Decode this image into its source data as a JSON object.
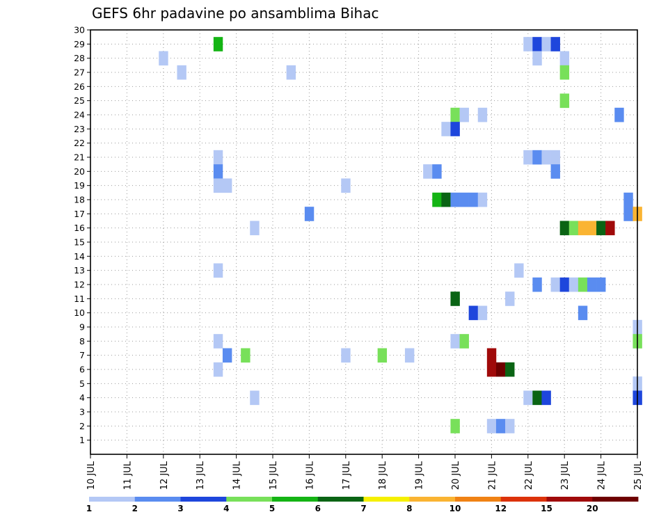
{
  "chart_data": {
    "type": "heatmap",
    "title": "GEFS 6hr padavine po ansamblima Bihac",
    "xlabel": "",
    "ylabel": "",
    "x_ticks": [
      "10 JUL",
      "11 JUL",
      "12 JUL",
      "13 JUL",
      "14 JUL",
      "15 JUL",
      "16 JUL",
      "17 JUL",
      "18 JUL",
      "19 JUL",
      "20 JUL",
      "21 JUL",
      "22 JUL",
      "23 JUL",
      "24 JUL",
      "25 JUL"
    ],
    "xlim": [
      0,
      60
    ],
    "x_units": "6-hour steps from 10 JUL 00Z",
    "ylim": [
      0,
      30
    ],
    "y_ticks": [
      1,
      2,
      3,
      4,
      5,
      6,
      7,
      8,
      9,
      10,
      11,
      12,
      13,
      14,
      15,
      16,
      17,
      18,
      19,
      20,
      21,
      22,
      23,
      24,
      25,
      26,
      27,
      28,
      29,
      30
    ],
    "grid": true,
    "legend_placement": "bottom",
    "legend": {
      "labels": [
        "1",
        "2",
        "3",
        "4",
        "5",
        "6",
        "7",
        "8",
        "10",
        "12",
        "15",
        "20"
      ],
      "colors": [
        "#b4c8f5",
        "#5a8cf0",
        "#1e46dc",
        "#78e05a",
        "#14b414",
        "#0a6414",
        "#f5f000",
        "#fab432",
        "#f08214",
        "#dc320a",
        "#a00a0a",
        "#6e0000"
      ]
    },
    "values": [
      {
        "x": 14,
        "y": 29,
        "v": 5
      },
      {
        "x": 48,
        "y": 29,
        "v": 1
      },
      {
        "x": 49,
        "y": 29,
        "v": 3
      },
      {
        "x": 50,
        "y": 29,
        "v": 1
      },
      {
        "x": 51,
        "y": 29,
        "v": 3
      },
      {
        "x": 8,
        "y": 28,
        "v": 1
      },
      {
        "x": 52,
        "y": 28,
        "v": 1
      },
      {
        "x": 49,
        "y": 28,
        "v": 1
      },
      {
        "x": 10,
        "y": 27,
        "v": 1
      },
      {
        "x": 22,
        "y": 27,
        "v": 1
      },
      {
        "x": 52,
        "y": 27,
        "v": 4
      },
      {
        "x": 52,
        "y": 25,
        "v": 4
      },
      {
        "x": 40,
        "y": 24,
        "v": 4
      },
      {
        "x": 41,
        "y": 24,
        "v": 1
      },
      {
        "x": 43,
        "y": 24,
        "v": 1
      },
      {
        "x": 58,
        "y": 24,
        "v": 2
      },
      {
        "x": 39,
        "y": 23,
        "v": 1
      },
      {
        "x": 40,
        "y": 23,
        "v": 3
      },
      {
        "x": 14,
        "y": 21,
        "v": 1
      },
      {
        "x": 48,
        "y": 21,
        "v": 1
      },
      {
        "x": 49,
        "y": 21,
        "v": 2
      },
      {
        "x": 50,
        "y": 21,
        "v": 1
      },
      {
        "x": 51,
        "y": 21,
        "v": 1
      },
      {
        "x": 14,
        "y": 20,
        "v": 2
      },
      {
        "x": 37,
        "y": 20,
        "v": 1
      },
      {
        "x": 38,
        "y": 20,
        "v": 2
      },
      {
        "x": 51,
        "y": 20,
        "v": 2
      },
      {
        "x": 14,
        "y": 19,
        "v": 1
      },
      {
        "x": 15,
        "y": 19,
        "v": 1
      },
      {
        "x": 28,
        "y": 19,
        "v": 1
      },
      {
        "x": 38,
        "y": 18,
        "v": 5
      },
      {
        "x": 39,
        "y": 18,
        "v": 6
      },
      {
        "x": 40,
        "y": 18,
        "v": 2
      },
      {
        "x": 41,
        "y": 18,
        "v": 2
      },
      {
        "x": 42,
        "y": 18,
        "v": 2
      },
      {
        "x": 43,
        "y": 18,
        "v": 1
      },
      {
        "x": 59,
        "y": 18,
        "v": 2
      },
      {
        "x": 24,
        "y": 17,
        "v": 2
      },
      {
        "x": 59,
        "y": 17,
        "v": 2
      },
      {
        "x": 60,
        "y": 17,
        "v": 8
      },
      {
        "x": 18,
        "y": 16,
        "v": 1
      },
      {
        "x": 52,
        "y": 16,
        "v": 6
      },
      {
        "x": 53,
        "y": 16,
        "v": 4
      },
      {
        "x": 54,
        "y": 16,
        "v": 8
      },
      {
        "x": 55,
        "y": 16,
        "v": 8
      },
      {
        "x": 56,
        "y": 16,
        "v": 6
      },
      {
        "x": 57,
        "y": 16,
        "v": 15
      },
      {
        "x": 14,
        "y": 13,
        "v": 1
      },
      {
        "x": 47,
        "y": 13,
        "v": 1
      },
      {
        "x": 49,
        "y": 12,
        "v": 2
      },
      {
        "x": 51,
        "y": 12,
        "v": 1
      },
      {
        "x": 52,
        "y": 12,
        "v": 3
      },
      {
        "x": 53,
        "y": 12,
        "v": 1
      },
      {
        "x": 54,
        "y": 12,
        "v": 4
      },
      {
        "x": 55,
        "y": 12,
        "v": 2
      },
      {
        "x": 56,
        "y": 12,
        "v": 2
      },
      {
        "x": 40,
        "y": 11,
        "v": 6
      },
      {
        "x": 46,
        "y": 11,
        "v": 1
      },
      {
        "x": 42,
        "y": 10,
        "v": 3
      },
      {
        "x": 43,
        "y": 10,
        "v": 1
      },
      {
        "x": 54,
        "y": 10,
        "v": 2
      },
      {
        "x": 60,
        "y": 9,
        "v": 1
      },
      {
        "x": 14,
        "y": 8,
        "v": 1
      },
      {
        "x": 40,
        "y": 8,
        "v": 1
      },
      {
        "x": 41,
        "y": 8,
        "v": 4
      },
      {
        "x": 60,
        "y": 8,
        "v": 4
      },
      {
        "x": 15,
        "y": 7,
        "v": 2
      },
      {
        "x": 17,
        "y": 7,
        "v": 4
      },
      {
        "x": 28,
        "y": 7,
        "v": 1
      },
      {
        "x": 32,
        "y": 7,
        "v": 4
      },
      {
        "x": 35,
        "y": 7,
        "v": 1
      },
      {
        "x": 44,
        "y": 7,
        "v": 15
      },
      {
        "x": 14,
        "y": 6,
        "v": 1
      },
      {
        "x": 44,
        "y": 6,
        "v": 15
      },
      {
        "x": 45,
        "y": 6,
        "v": 20
      },
      {
        "x": 46,
        "y": 6,
        "v": 6
      },
      {
        "x": 60,
        "y": 5,
        "v": 1
      },
      {
        "x": 18,
        "y": 4,
        "v": 1
      },
      {
        "x": 48,
        "y": 4,
        "v": 1
      },
      {
        "x": 49,
        "y": 4,
        "v": 6
      },
      {
        "x": 50,
        "y": 4,
        "v": 3
      },
      {
        "x": 60,
        "y": 4,
        "v": 3
      },
      {
        "x": 40,
        "y": 2,
        "v": 4
      },
      {
        "x": 44,
        "y": 2,
        "v": 1
      },
      {
        "x": 45,
        "y": 2,
        "v": 2
      },
      {
        "x": 46,
        "y": 2,
        "v": 1
      }
    ]
  }
}
